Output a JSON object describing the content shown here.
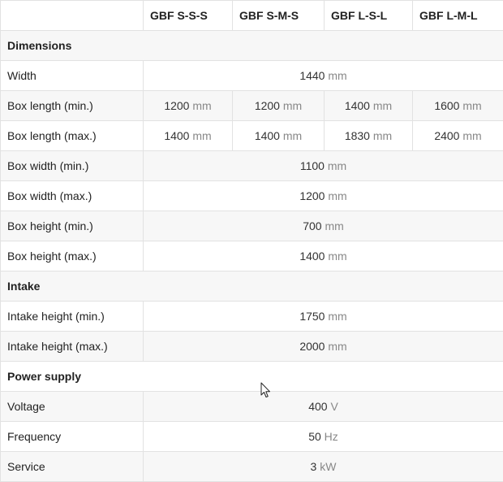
{
  "header": {
    "models": [
      "GBF S-S-S",
      "GBF S-M-S",
      "GBF L-S-L",
      "GBF L-M-L"
    ]
  },
  "sections": {
    "dimensions": "Dimensions",
    "intake": "Intake",
    "power": "Power supply"
  },
  "rows": {
    "width": {
      "label": "Width",
      "value": "1440",
      "unit": "mm"
    },
    "box_length_min": {
      "label": "Box length (min.)",
      "values": [
        "1200",
        "1200",
        "1400",
        "1600"
      ],
      "unit": "mm"
    },
    "box_length_max": {
      "label": "Box length (max.)",
      "values": [
        "1400",
        "1400",
        "1830",
        "2400"
      ],
      "unit": "mm"
    },
    "box_width_min": {
      "label": "Box width (min.)",
      "value": "1100",
      "unit": "mm"
    },
    "box_width_max": {
      "label": "Box width (max.)",
      "value": "1200",
      "unit": "mm"
    },
    "box_height_min": {
      "label": "Box height (min.)",
      "value": "700",
      "unit": "mm"
    },
    "box_height_max": {
      "label": "Box height (max.)",
      "value": "1400",
      "unit": "mm"
    },
    "intake_height_min": {
      "label": "Intake height (min.)",
      "value": "1750",
      "unit": "mm"
    },
    "intake_height_max": {
      "label": "Intake height (max.)",
      "value": "2000",
      "unit": "mm"
    },
    "voltage": {
      "label": "Voltage",
      "value": "400",
      "unit": "V"
    },
    "frequency": {
      "label": "Frequency",
      "value": "50",
      "unit": "Hz"
    },
    "service": {
      "label": "Service",
      "value": "3",
      "unit": "kW"
    }
  },
  "colors": {
    "border": "#e2e2e2",
    "stripe": "#f7f7f7",
    "unit_text": "#888888"
  },
  "cursor": {
    "icon": "mouse-pointer-icon"
  }
}
